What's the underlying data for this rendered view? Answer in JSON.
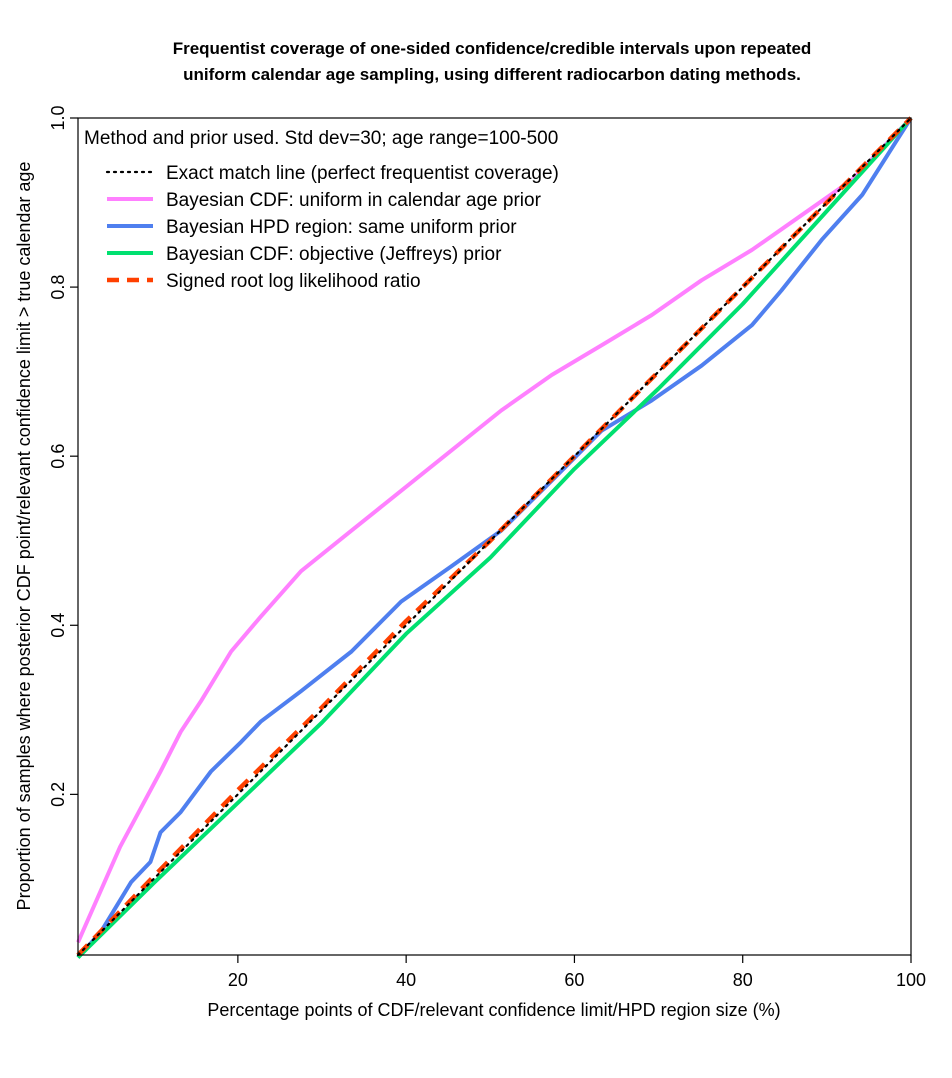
{
  "chart_data": {
    "type": "line",
    "title_lines": [
      "Frequentist coverage of one-sided confidence/credible intervals upon repeated",
      "uniform calendar age sampling, using different radiocarbon dating methods."
    ],
    "xlabel": "Percentage points of CDF/relevant confidence limit/HPD region size (%)",
    "ylabel": "Proportion of samples where posterior CDF point/relevant confidence limit > true calendar age",
    "xlim": [
      1,
      100
    ],
    "ylim": [
      0.01,
      1.0
    ],
    "x_ticks": [
      20,
      40,
      60,
      80,
      100
    ],
    "y_ticks": [
      0.2,
      0.4,
      0.6,
      0.8,
      1.0
    ],
    "y_tick_labels": [
      "0.2",
      "0.4",
      "0.6",
      "0.8",
      "1.0"
    ],
    "grid": false,
    "legend": {
      "placement": "top-left",
      "title": "Method and prior used. Std dev=30; age range=100-500"
    },
    "series": [
      {
        "name": "Exact match line (perfect frequentist coverage)",
        "color": "#000000",
        "style": "dotted",
        "x": [
          1,
          100
        ],
        "y": [
          0.01,
          1.0
        ]
      },
      {
        "name": "Bayesian CDF: uniform in calendar age prior",
        "color": "#FF80FF",
        "style": "solid",
        "x": [
          1,
          6,
          10.8,
          13.2,
          15.6,
          19.2,
          22.7,
          27.5,
          33.5,
          39.4,
          45.4,
          51.3,
          57.3,
          63.2,
          69.2,
          75.1,
          81.1,
          87,
          93,
          100
        ],
        "y": [
          0.025,
          0.138,
          0.227,
          0.274,
          0.31,
          0.369,
          0.41,
          0.464,
          0.512,
          0.559,
          0.607,
          0.654,
          0.696,
          0.731,
          0.767,
          0.808,
          0.844,
          0.885,
          0.927,
          1.0
        ]
      },
      {
        "name": "Bayesian HPD region: same uniform prior",
        "color": "#4F7FEF",
        "style": "solid",
        "x": [
          1,
          3.7,
          7.3,
          9.6,
          10.8,
          13.2,
          16.8,
          20.4,
          22.7,
          27.5,
          33.5,
          39.4,
          45.4,
          51.3,
          57.3,
          63.2,
          69.2,
          75.1,
          81.1,
          84.6,
          89.4,
          94.2,
          100
        ],
        "y": [
          0.007,
          0.037,
          0.096,
          0.12,
          0.155,
          0.179,
          0.227,
          0.262,
          0.286,
          0.322,
          0.369,
          0.428,
          0.47,
          0.512,
          0.571,
          0.63,
          0.666,
          0.707,
          0.755,
          0.796,
          0.856,
          0.909,
          1.0
        ]
      },
      {
        "name": "Bayesian CDF: objective (Jeffreys) prior",
        "color": "#00E070",
        "style": "solid",
        "x": [
          1,
          10,
          20,
          30,
          40,
          50,
          60,
          70,
          80,
          90,
          100
        ],
        "y": [
          0.007,
          0.095,
          0.19,
          0.285,
          0.39,
          0.48,
          0.585,
          0.68,
          0.78,
          0.89,
          1.0
        ]
      },
      {
        "name": "Signed root log likelihood ratio",
        "color": "#FF4000",
        "style": "dashed",
        "x": [
          1,
          10,
          20,
          30,
          40,
          50,
          60,
          70,
          80,
          90,
          100
        ],
        "y": [
          0.01,
          0.103,
          0.205,
          0.303,
          0.405,
          0.5,
          0.6,
          0.7,
          0.8,
          0.9,
          1.0
        ]
      }
    ]
  }
}
